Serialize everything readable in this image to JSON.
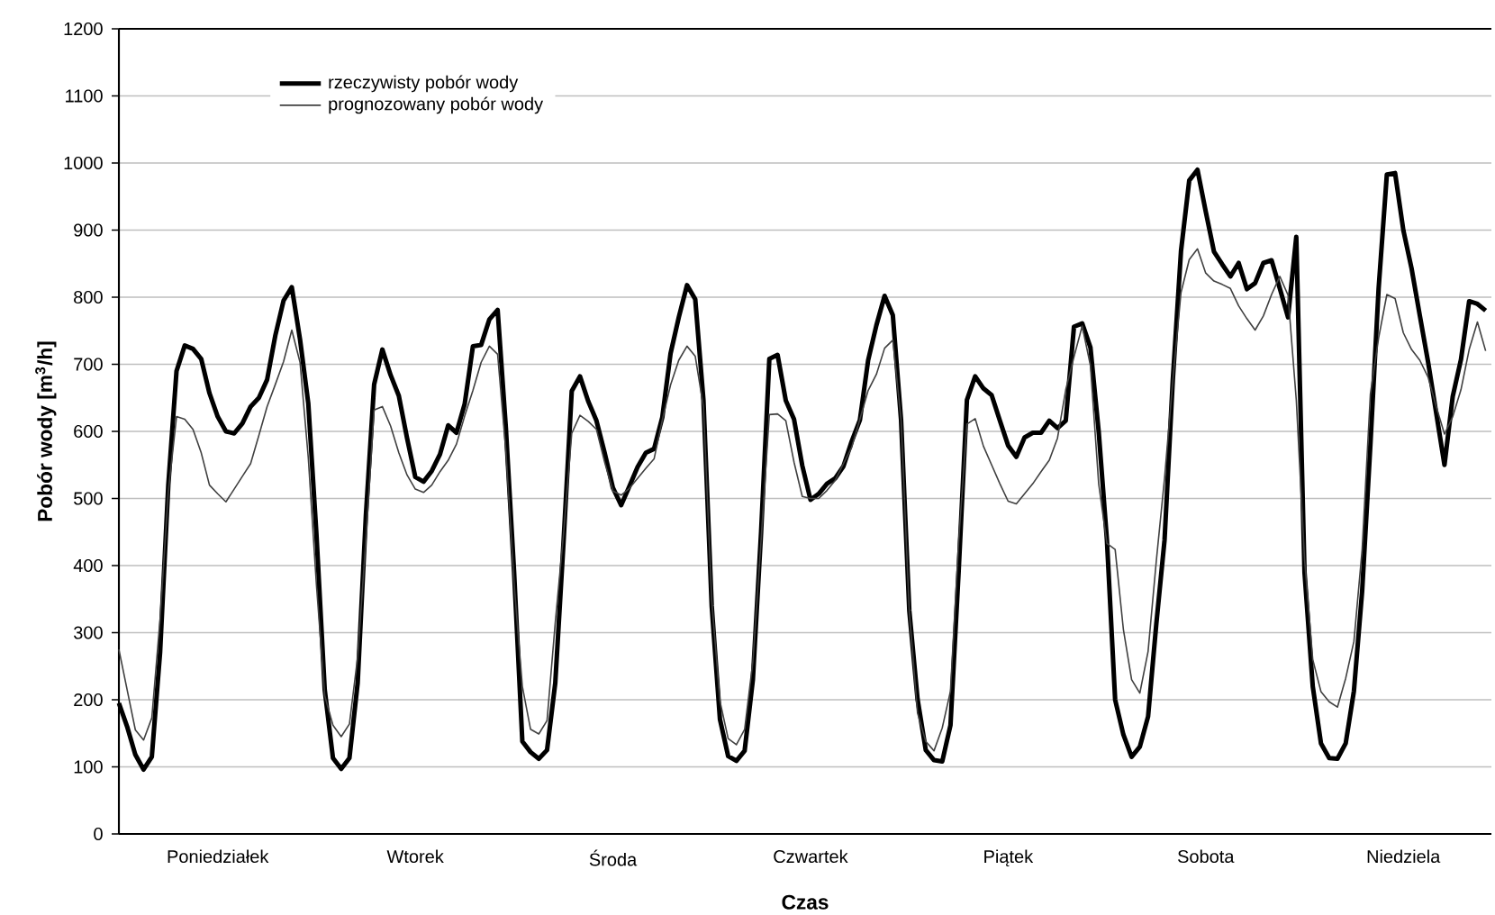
{
  "chart_data": {
    "type": "line",
    "xlabel": "Czas",
    "ylabel": "Pobór wody [m$^{3}$/h]",
    "categories": [
      null,
      null,
      null,
      null,
      null,
      null,
      null,
      null,
      null,
      null,
      null,
      null,
      "Poniedziałek",
      null,
      null,
      null,
      null,
      null,
      null,
      null,
      null,
      null,
      null,
      null,
      null,
      null,
      null,
      null,
      null,
      null,
      null,
      null,
      null,
      null,
      null,
      null,
      "Wtorek",
      null,
      null,
      null,
      null,
      null,
      null,
      null,
      null,
      null,
      null,
      null,
      null,
      null,
      null,
      null,
      null,
      null,
      null,
      null,
      null,
      null,
      null,
      null,
      "Środa",
      null,
      null,
      null,
      null,
      null,
      null,
      null,
      null,
      null,
      null,
      null,
      null,
      null,
      null,
      null,
      null,
      null,
      null,
      null,
      null,
      null,
      null,
      null,
      "Czwartek",
      null,
      null,
      null,
      null,
      null,
      null,
      null,
      null,
      null,
      null,
      null,
      null,
      null,
      null,
      null,
      null,
      null,
      null,
      null,
      null,
      null,
      null,
      null,
      "Piątek",
      null,
      null,
      null,
      null,
      null,
      null,
      null,
      null,
      null,
      null,
      null,
      null,
      null,
      null,
      null,
      null,
      null,
      null,
      null,
      null,
      null,
      null,
      null,
      "Sobota",
      null,
      null,
      null,
      null,
      null,
      null,
      null,
      null,
      null,
      null,
      null,
      null,
      null,
      null,
      null,
      null,
      null,
      null,
      null,
      null,
      null,
      null,
      null,
      "Niedziela",
      null,
      null,
      null,
      null,
      null,
      null,
      null,
      null,
      null,
      null
    ],
    "ylim": [
      0,
      1200
    ],
    "yticks": [
      0,
      100,
      200,
      300,
      400,
      500,
      600,
      700,
      800,
      900,
      1000,
      1100,
      1200
    ],
    "grid": "y",
    "legend": "top left",
    "marker": "none",
    "line_style": "solid",
    "series": [
      {
        "name": "rzeczywisty pobór wody",
        "color": "#000000",
        "values": [
          195,
          160,
          118,
          96,
          115,
          270,
          520,
          690,
          728,
          723,
          708,
          657,
          622,
          600,
          597,
          612,
          637,
          650,
          677,
          743,
          795,
          815,
          737,
          642,
          445,
          215,
          113,
          97,
          113,
          225,
          475,
          670,
          722,
          684,
          653,
          590,
          532,
          525,
          541,
          566,
          609,
          598,
          641,
          727,
          729,
          767,
          781,
          605,
          390,
          138,
          122,
          112,
          125,
          225,
          434,
          660,
          682,
          645,
          616,
          568,
          516,
          490,
          518,
          547,
          568,
          574,
          621,
          716,
          770,
          818,
          797,
          646,
          340,
          171,
          116,
          109,
          124,
          230,
          450,
          708,
          714,
          646,
          618,
          549,
          498,
          507,
          522,
          530,
          548,
          585,
          617,
          706,
          758,
          802,
          773,
          617,
          333,
          201,
          125,
          110,
          108,
          162,
          393,
          647,
          682,
          664,
          654,
          616,
          579,
          562,
          591,
          598,
          598,
          616,
          605,
          616,
          756,
          761,
          725,
          600,
          438,
          200,
          148,
          115,
          130,
          175,
          313,
          438,
          676,
          869,
          974,
          990,
          928,
          868,
          849,
          831,
          851,
          812,
          821,
          851,
          855,
          813,
          770,
          890,
          390,
          220,
          135,
          113,
          112,
          135,
          213,
          362,
          580,
          813,
          983,
          985,
          900,
          843,
          773,
          704,
          627,
          550,
          652,
          707,
          794,
          790,
          780
        ]
      },
      {
        "name": "prognozowany pobór wody",
        "color": "#404040",
        "values": [
          275,
          215,
          155,
          140,
          173,
          320,
          510,
          622,
          618,
          603,
          568,
          520,
          507,
          495,
          514,
          533,
          552,
          594,
          637,
          670,
          704,
          751,
          703,
          561,
          370,
          206,
          162,
          145,
          164,
          264,
          438,
          632,
          637,
          608,
          568,
          535,
          514,
          509,
          520,
          540,
          557,
          581,
          623,
          661,
          703,
          727,
          715,
          571,
          373,
          220,
          156,
          149,
          169,
          315,
          447,
          597,
          624,
          615,
          603,
          554,
          511,
          505,
          515,
          530,
          545,
          559,
          617,
          669,
          706,
          727,
          712,
          636,
          349,
          198,
          142,
          133,
          156,
          257,
          438,
          625,
          626,
          616,
          554,
          503,
          500,
          500,
          512,
          527,
          552,
          576,
          618,
          661,
          685,
          724,
          736,
          617,
          330,
          180,
          138,
          124,
          158,
          213,
          438,
          611,
          619,
          578,
          550,
          522,
          496,
          492,
          507,
          522,
          540,
          557,
          590,
          662,
          711,
          757,
          698,
          522,
          433,
          424,
          305,
          230,
          210,
          272,
          407,
          530,
          675,
          807,
          856,
          872,
          836,
          824,
          819,
          813,
          787,
          768,
          751,
          772,
          804,
          831,
          803,
          647,
          410,
          260,
          212,
          197,
          189,
          232,
          287,
          424,
          656,
          739,
          804,
          798,
          747,
          722,
          706,
          681,
          637,
          596,
          622,
          662,
          722,
          763,
          720
        ]
      }
    ]
  }
}
